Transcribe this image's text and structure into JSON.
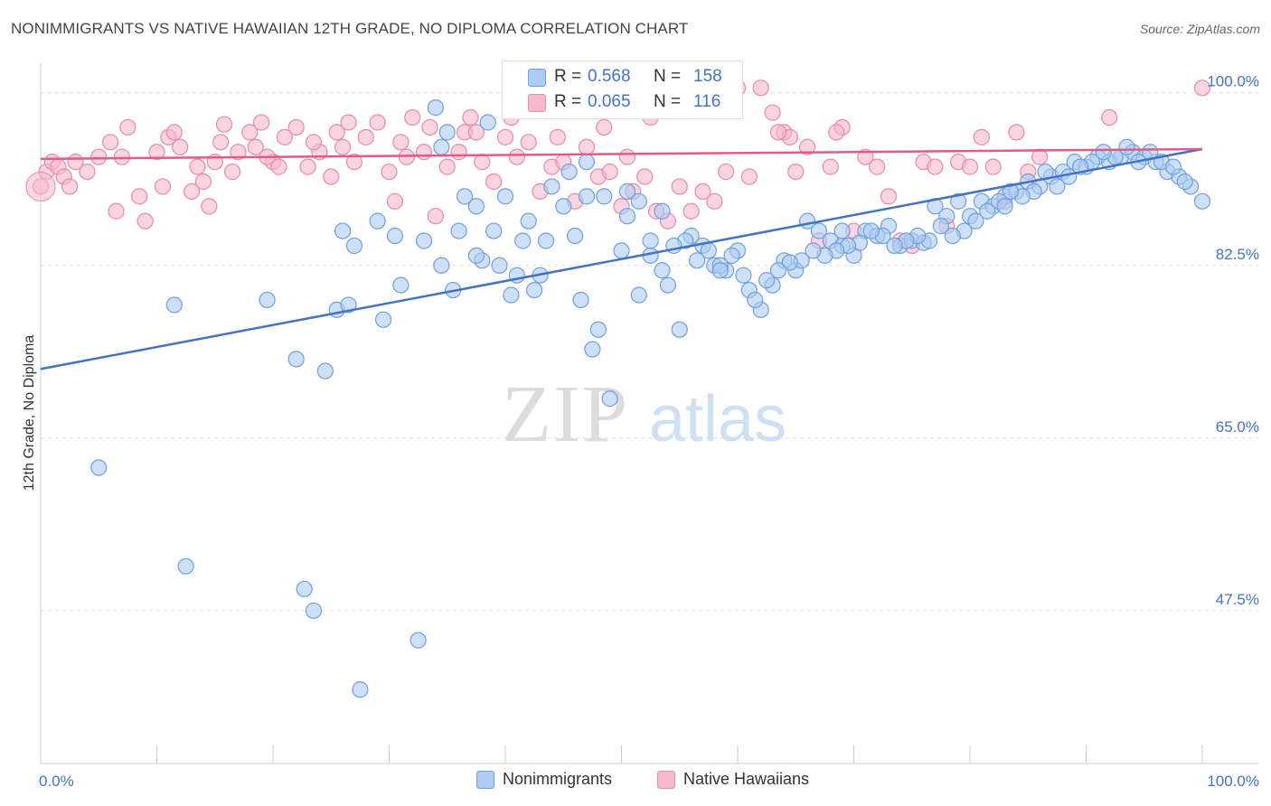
{
  "title": "NONIMMIGRANTS VS NATIVE HAWAIIAN 12TH GRADE, NO DIPLOMA CORRELATION CHART",
  "source": "Source: ZipAtlas.com",
  "watermark": {
    "zip": "ZIP",
    "atlas": "atlas"
  },
  "legend": {
    "r_label": "R =",
    "n_label": "N =",
    "series": [
      {
        "r": "0.568",
        "n": "158",
        "fill": "#aecbf2",
        "stroke": "#6f9fdc"
      },
      {
        "r": "0.065",
        "n": "116",
        "fill": "#f6b9cd",
        "stroke": "#e68aa9"
      }
    ]
  },
  "chart_data": {
    "type": "scatter",
    "title": "NONIMMIGRANTS VS NATIVE HAWAIIAN 12TH GRADE, NO DIPLOMA CORRELATION CHART",
    "xlabel": "",
    "ylabel": "12th Grade, No Diploma",
    "xlim": [
      0,
      100
    ],
    "ylim": [
      32,
      103
    ],
    "x_tick_labels": [
      "0.0%",
      "100.0%"
    ],
    "y_ticks": [
      47.5,
      65.0,
      82.5,
      100.0
    ],
    "y_tick_labels": [
      "47.5%",
      "65.0%",
      "82.5%",
      "100.0%"
    ],
    "grid": "horizontal dashed",
    "legend_position": "top-center",
    "series": [
      {
        "name": "Nonimmigrants",
        "color": "#4472c4",
        "fill": "#aecbf2",
        "stroke": "#6f9fdc",
        "trend_line": {
          "x": [
            0,
            100
          ],
          "y": [
            72.0,
            94.3
          ]
        },
        "points": [
          [
            34.0,
            98.5
          ],
          [
            35.0,
            96.0
          ],
          [
            34.5,
            94.5
          ],
          [
            44.0,
            99.5
          ],
          [
            40.0,
            89.5
          ],
          [
            46.0,
            85.5
          ],
          [
            48.5,
            89.5
          ],
          [
            50.0,
            84.0
          ],
          [
            47.0,
            93.0
          ],
          [
            11.5,
            78.5
          ],
          [
            19.5,
            79.0
          ],
          [
            22.0,
            73.0
          ],
          [
            24.5,
            71.8
          ],
          [
            26.0,
            86.0
          ],
          [
            27.0,
            84.5
          ],
          [
            25.5,
            78.0
          ],
          [
            26.5,
            78.5
          ],
          [
            29.0,
            87.0
          ],
          [
            29.5,
            77.0
          ],
          [
            31.0,
            80.5
          ],
          [
            30.5,
            85.5
          ],
          [
            33.0,
            85.0
          ],
          [
            34.5,
            82.5
          ],
          [
            35.5,
            80.0
          ],
          [
            36.0,
            86.0
          ],
          [
            37.5,
            88.5
          ],
          [
            38.0,
            83.0
          ],
          [
            39.5,
            82.5
          ],
          [
            40.5,
            79.5
          ],
          [
            41.5,
            85.0
          ],
          [
            42.5,
            80.0
          ],
          [
            43.0,
            81.5
          ],
          [
            44.0,
            90.5
          ],
          [
            45.0,
            88.5
          ],
          [
            46.5,
            79.0
          ],
          [
            47.5,
            74.0
          ],
          [
            48.0,
            76.0
          ],
          [
            49.0,
            69.0
          ],
          [
            50.5,
            87.5
          ],
          [
            51.5,
            79.5
          ],
          [
            52.5,
            83.5
          ],
          [
            53.5,
            82.0
          ],
          [
            54.0,
            80.5
          ],
          [
            55.0,
            76.0
          ],
          [
            56.0,
            85.5
          ],
          [
            57.0,
            84.5
          ],
          [
            58.0,
            82.5
          ],
          [
            59.0,
            82.0
          ],
          [
            60.0,
            84.0
          ],
          [
            61.0,
            80.0
          ],
          [
            62.0,
            78.0
          ],
          [
            63.0,
            80.5
          ],
          [
            64.0,
            83.0
          ],
          [
            65.0,
            82.0
          ],
          [
            66.0,
            87.0
          ],
          [
            67.0,
            86.0
          ],
          [
            68.0,
            85.0
          ],
          [
            69.0,
            84.5
          ],
          [
            70.0,
            83.5
          ],
          [
            71.0,
            86.0
          ],
          [
            72.0,
            85.5
          ],
          [
            73.0,
            86.5
          ],
          [
            74.0,
            84.5
          ],
          [
            75.0,
            85.0
          ],
          [
            76.0,
            84.8
          ],
          [
            77.0,
            88.5
          ],
          [
            78.0,
            87.5
          ],
          [
            79.0,
            89.0
          ],
          [
            80.0,
            87.5
          ],
          [
            81.0,
            89.0
          ],
          [
            82.0,
            88.5
          ],
          [
            83.0,
            89.5
          ],
          [
            84.0,
            90.0
          ],
          [
            85.0,
            91.0
          ],
          [
            86.0,
            90.5
          ],
          [
            87.0,
            91.5
          ],
          [
            88.0,
            92.0
          ],
          [
            89.0,
            93.0
          ],
          [
            90.0,
            92.5
          ],
          [
            91.0,
            93.5
          ],
          [
            92.0,
            93.0
          ],
          [
            93.0,
            93.5
          ],
          [
            94.0,
            94.0
          ],
          [
            95.0,
            93.5
          ],
          [
            96.0,
            93.0
          ],
          [
            97.0,
            92.0
          ],
          [
            98.0,
            91.5
          ],
          [
            99.0,
            90.5
          ],
          [
            100.0,
            89.0
          ],
          [
            95.5,
            94.0
          ],
          [
            96.5,
            93.0
          ],
          [
            93.5,
            94.5
          ],
          [
            92.5,
            93.5
          ],
          [
            91.5,
            94.0
          ],
          [
            97.5,
            92.5
          ],
          [
            94.5,
            93.0
          ],
          [
            98.5,
            91.0
          ],
          [
            90.5,
            93.0
          ],
          [
            89.5,
            92.5
          ],
          [
            88.5,
            91.5
          ],
          [
            87.5,
            90.5
          ],
          [
            86.5,
            92.0
          ],
          [
            85.5,
            90.0
          ],
          [
            84.5,
            89.5
          ],
          [
            83.5,
            90.0
          ],
          [
            82.5,
            89.0
          ],
          [
            81.5,
            88.0
          ],
          [
            80.5,
            87.0
          ],
          [
            79.5,
            86.0
          ],
          [
            78.5,
            85.5
          ],
          [
            77.5,
            86.5
          ],
          [
            76.5,
            85.0
          ],
          [
            75.5,
            85.5
          ],
          [
            74.5,
            85.0
          ],
          [
            73.5,
            84.5
          ],
          [
            72.5,
            85.5
          ],
          [
            71.5,
            86.0
          ],
          [
            70.5,
            84.8
          ],
          [
            69.5,
            84.5
          ],
          [
            68.5,
            84.0
          ],
          [
            67.5,
            83.5
          ],
          [
            66.5,
            84.0
          ],
          [
            65.5,
            83.0
          ],
          [
            64.5,
            82.8
          ],
          [
            63.5,
            82.0
          ],
          [
            62.5,
            81.0
          ],
          [
            61.5,
            79.0
          ],
          [
            60.5,
            81.5
          ],
          [
            59.5,
            83.5
          ],
          [
            58.5,
            82.5
          ],
          [
            57.5,
            84.0
          ],
          [
            56.5,
            83.0
          ],
          [
            55.5,
            85.0
          ],
          [
            54.5,
            84.5
          ],
          [
            53.5,
            88.0
          ],
          [
            52.5,
            85.0
          ],
          [
            51.5,
            89.0
          ],
          [
            50.5,
            90.0
          ],
          [
            37.5,
            83.5
          ],
          [
            39.0,
            86.0
          ],
          [
            42.0,
            87.0
          ],
          [
            45.5,
            92.0
          ],
          [
            47.0,
            89.5
          ],
          [
            36.5,
            89.5
          ],
          [
            41.0,
            81.5
          ],
          [
            43.5,
            85.0
          ],
          [
            5.0,
            62.0
          ],
          [
            12.5,
            52.0
          ],
          [
            22.7,
            49.7
          ],
          [
            23.5,
            47.5
          ],
          [
            32.5,
            44.5
          ],
          [
            27.5,
            39.5
          ],
          [
            38.5,
            97.0
          ],
          [
            58.5,
            82.0
          ],
          [
            83.0,
            88.5
          ],
          [
            69.0,
            86.0
          ]
        ]
      },
      {
        "name": "Native Hawaiians",
        "color": "#e15a8a",
        "fill": "#f6b9cd",
        "stroke": "#e68aa9",
        "trend_line": {
          "x": [
            0,
            100
          ],
          "y": [
            93.3,
            94.3
          ]
        },
        "points": [
          [
            0.0,
            90.5
          ],
          [
            0.5,
            92.0
          ],
          [
            1.0,
            93.0
          ],
          [
            1.5,
            92.5
          ],
          [
            2.0,
            91.5
          ],
          [
            3.0,
            93.0
          ],
          [
            4.0,
            92.0
          ],
          [
            5.0,
            93.5
          ],
          [
            6.0,
            95.0
          ],
          [
            7.0,
            93.5
          ],
          [
            7.5,
            96.5
          ],
          [
            8.5,
            89.5
          ],
          [
            9.0,
            87.0
          ],
          [
            10.0,
            94.0
          ],
          [
            11.0,
            95.5
          ],
          [
            11.5,
            96.0
          ],
          [
            12.0,
            94.5
          ],
          [
            13.0,
            90.0
          ],
          [
            13.5,
            92.5
          ],
          [
            14.5,
            88.5
          ],
          [
            15.0,
            93.0
          ],
          [
            15.5,
            95.0
          ],
          [
            16.5,
            92.0
          ],
          [
            17.0,
            94.0
          ],
          [
            18.0,
            96.0
          ],
          [
            18.5,
            94.5
          ],
          [
            19.0,
            97.0
          ],
          [
            20.0,
            93.0
          ],
          [
            21.0,
            95.5
          ],
          [
            22.0,
            96.5
          ],
          [
            23.0,
            92.5
          ],
          [
            24.0,
            94.0
          ],
          [
            25.0,
            91.5
          ],
          [
            25.5,
            96.0
          ],
          [
            26.0,
            94.5
          ],
          [
            27.0,
            93.0
          ],
          [
            28.0,
            95.5
          ],
          [
            29.0,
            97.0
          ],
          [
            30.0,
            92.0
          ],
          [
            30.5,
            89.0
          ],
          [
            31.0,
            95.0
          ],
          [
            32.0,
            97.5
          ],
          [
            33.0,
            94.0
          ],
          [
            34.0,
            87.5
          ],
          [
            35.0,
            92.5
          ],
          [
            36.0,
            94.0
          ],
          [
            37.0,
            97.5
          ],
          [
            38.0,
            93.0
          ],
          [
            39.0,
            91.0
          ],
          [
            40.0,
            95.5
          ],
          [
            41.0,
            93.5
          ],
          [
            42.0,
            95.0
          ],
          [
            43.0,
            90.0
          ],
          [
            44.0,
            92.5
          ],
          [
            45.0,
            93.0
          ],
          [
            46.0,
            89.0
          ],
          [
            47.0,
            94.5
          ],
          [
            48.0,
            91.5
          ],
          [
            49.0,
            92.0
          ],
          [
            50.0,
            88.5
          ],
          [
            51.0,
            90.0
          ],
          [
            52.0,
            91.5
          ],
          [
            53.0,
            88.0
          ],
          [
            54.0,
            87.0
          ],
          [
            55.0,
            90.5
          ],
          [
            56.0,
            88.0
          ],
          [
            57.0,
            90.0
          ],
          [
            58.0,
            89.0
          ],
          [
            59.0,
            92.0
          ],
          [
            60.0,
            100.5
          ],
          [
            61.0,
            91.5
          ],
          [
            62.0,
            100.5
          ],
          [
            63.0,
            98.0
          ],
          [
            64.0,
            96.0
          ],
          [
            65.0,
            92.0
          ],
          [
            66.0,
            94.5
          ],
          [
            67.0,
            85.0
          ],
          [
            68.0,
            92.5
          ],
          [
            69.0,
            96.5
          ],
          [
            70.0,
            86.0
          ],
          [
            71.0,
            93.5
          ],
          [
            72.0,
            92.5
          ],
          [
            73.0,
            89.5
          ],
          [
            74.0,
            85.0
          ],
          [
            75.0,
            84.5
          ],
          [
            76.0,
            93.0
          ],
          [
            77.0,
            92.5
          ],
          [
            78.0,
            86.5
          ],
          [
            79.0,
            93.0
          ],
          [
            80.0,
            92.5
          ],
          [
            81.0,
            95.5
          ],
          [
            82.0,
            92.5
          ],
          [
            83.0,
            89.0
          ],
          [
            84.0,
            96.0
          ],
          [
            85.0,
            92.0
          ],
          [
            86.0,
            93.5
          ],
          [
            92.0,
            97.5
          ],
          [
            100.0,
            100.5
          ],
          [
            2.5,
            90.5
          ],
          [
            6.5,
            88.0
          ],
          [
            10.5,
            90.5
          ],
          [
            14.0,
            91.0
          ],
          [
            19.5,
            93.5
          ],
          [
            23.5,
            95.0
          ],
          [
            26.5,
            97.0
          ],
          [
            31.5,
            93.5
          ],
          [
            36.5,
            96.0
          ],
          [
            40.5,
            97.5
          ],
          [
            44.5,
            95.5
          ],
          [
            48.5,
            96.5
          ],
          [
            52.5,
            97.5
          ],
          [
            56.5,
            100.0
          ],
          [
            64.5,
            95.5
          ],
          [
            68.5,
            96.0
          ],
          [
            15.8,
            96.8
          ],
          [
            20.5,
            92.5
          ],
          [
            33.5,
            96.5
          ],
          [
            37.5,
            96.0
          ],
          [
            63.5,
            96.0
          ],
          [
            50.5,
            93.5
          ]
        ]
      }
    ]
  }
}
